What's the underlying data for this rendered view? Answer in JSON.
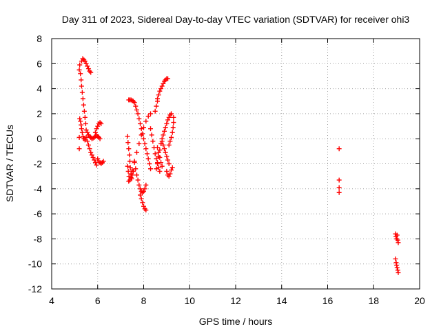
{
  "chart_data": {
    "type": "scatter",
    "title": "Day 311 of 2023, Sidereal Day-to-day VTEC variation (SDTVAR) for receiver ohi3",
    "xlabel": "GPS time / hours",
    "ylabel": "SDTVAR / TECUs",
    "xlim": [
      4,
      20
    ],
    "ylim": [
      -12,
      8
    ],
    "xticks": [
      4,
      6,
      8,
      10,
      12,
      14,
      16,
      18,
      20
    ],
    "yticks": [
      -12,
      -10,
      -8,
      -6,
      -4,
      -2,
      0,
      2,
      4,
      6,
      8
    ],
    "grid": true,
    "marker": "+",
    "color": "#ff0000",
    "series": [
      {
        "points": [
          [
            5.2,
            0.1
          ],
          [
            5.2,
            -0.8
          ],
          [
            5.2,
            5.5
          ],
          [
            5.22,
            5.9
          ],
          [
            5.25,
            5.2
          ],
          [
            5.28,
            4.7
          ],
          [
            5.3,
            4.2
          ],
          [
            5.33,
            3.7
          ],
          [
            5.36,
            3.2
          ],
          [
            5.39,
            2.7
          ],
          [
            5.42,
            2.2
          ],
          [
            5.45,
            1.7
          ],
          [
            5.48,
            1.2
          ],
          [
            5.5,
            0.7
          ],
          [
            5.3,
            6.2
          ],
          [
            5.35,
            6.4
          ],
          [
            5.4,
            6.3
          ],
          [
            5.45,
            6.2
          ],
          [
            5.5,
            6.0
          ],
          [
            5.55,
            5.8
          ],
          [
            5.6,
            5.6
          ],
          [
            5.65,
            5.4
          ],
          [
            5.7,
            5.3
          ],
          [
            5.22,
            1.6
          ],
          [
            5.25,
            1.4
          ],
          [
            5.28,
            1.1
          ],
          [
            5.3,
            0.8
          ],
          [
            5.33,
            0.5
          ],
          [
            5.36,
            0.2
          ],
          [
            5.4,
            0.0
          ],
          [
            5.45,
            -0.1
          ],
          [
            5.5,
            0.1
          ],
          [
            5.55,
            -0.2
          ],
          [
            5.6,
            -0.5
          ],
          [
            5.65,
            -0.8
          ],
          [
            5.7,
            -1.1
          ],
          [
            5.75,
            -1.3
          ],
          [
            5.8,
            -1.5
          ],
          [
            5.85,
            -1.7
          ],
          [
            5.9,
            -1.9
          ],
          [
            5.95,
            -2.1
          ],
          [
            5.55,
            0.5
          ],
          [
            5.6,
            0.3
          ],
          [
            5.65,
            0.2
          ],
          [
            5.7,
            0.1
          ],
          [
            5.75,
            0.0
          ],
          [
            5.8,
            0.05
          ],
          [
            5.85,
            0.1
          ],
          [
            5.9,
            0.2
          ],
          [
            5.95,
            0.3
          ],
          [
            6.0,
            0.2
          ],
          [
            6.05,
            0.1
          ],
          [
            6.1,
            0.0
          ],
          [
            5.9,
            0.5
          ],
          [
            5.95,
            0.8
          ],
          [
            6.0,
            1.0
          ],
          [
            6.05,
            1.2
          ],
          [
            6.1,
            1.3
          ],
          [
            6.15,
            1.2
          ],
          [
            6.0,
            -1.6
          ],
          [
            6.05,
            -1.8
          ],
          [
            6.1,
            -1.9
          ],
          [
            6.15,
            -2.0
          ],
          [
            6.2,
            -1.9
          ],
          [
            6.25,
            -1.8
          ],
          [
            7.3,
            0.2
          ],
          [
            7.32,
            -0.3
          ],
          [
            7.35,
            -0.8
          ],
          [
            7.38,
            -1.3
          ],
          [
            7.4,
            -1.8
          ],
          [
            7.42,
            -2.3
          ],
          [
            7.45,
            -2.8
          ],
          [
            7.48,
            -3.2
          ],
          [
            7.35,
            -3.4
          ],
          [
            7.3,
            -2.2
          ],
          [
            7.33,
            -2.6
          ],
          [
            7.36,
            -3.0
          ],
          [
            7.4,
            -3.3
          ],
          [
            7.45,
            -3.1
          ],
          [
            7.5,
            -2.9
          ],
          [
            7.55,
            -2.6
          ],
          [
            7.35,
            3.1
          ],
          [
            7.4,
            3.1
          ],
          [
            7.45,
            3.1
          ],
          [
            7.5,
            3.05
          ],
          [
            7.55,
            3.0
          ],
          [
            7.6,
            2.9
          ],
          [
            7.65,
            2.6
          ],
          [
            7.7,
            2.3
          ],
          [
            7.75,
            2.0
          ],
          [
            7.8,
            1.6
          ],
          [
            7.85,
            1.2
          ],
          [
            7.9,
            0.8
          ],
          [
            7.95,
            0.4
          ],
          [
            8.0,
            0.0
          ],
          [
            8.05,
            -0.4
          ],
          [
            8.1,
            -0.8
          ],
          [
            8.15,
            -1.2
          ],
          [
            8.2,
            -1.6
          ],
          [
            8.25,
            -2.0
          ],
          [
            8.3,
            -2.4
          ],
          [
            7.6,
            -1.9
          ],
          [
            7.65,
            -2.4
          ],
          [
            7.7,
            -2.9
          ],
          [
            7.75,
            -3.3
          ],
          [
            7.8,
            -3.7
          ],
          [
            7.85,
            -4.0
          ],
          [
            7.9,
            -4.2
          ],
          [
            7.95,
            -4.3
          ],
          [
            8.0,
            -4.2
          ],
          [
            8.05,
            -4.0
          ],
          [
            8.1,
            -3.7
          ],
          [
            7.85,
            -4.5
          ],
          [
            7.9,
            -4.8
          ],
          [
            7.95,
            -5.1
          ],
          [
            8.0,
            -5.4
          ],
          [
            8.05,
            -5.6
          ],
          [
            8.1,
            -5.7
          ],
          [
            7.5,
            -2.5
          ],
          [
            7.6,
            -1.8
          ],
          [
            7.7,
            -1.1
          ],
          [
            7.8,
            -0.4
          ],
          [
            7.9,
            0.3
          ],
          [
            8.0,
            0.9
          ],
          [
            8.1,
            1.4
          ],
          [
            8.2,
            1.8
          ],
          [
            8.3,
            2.0
          ],
          [
            8.6,
            3.2
          ],
          [
            8.65,
            3.5
          ],
          [
            8.7,
            3.8
          ],
          [
            8.75,
            4.0
          ],
          [
            8.8,
            4.2
          ],
          [
            8.85,
            4.4
          ],
          [
            8.9,
            4.6
          ],
          [
            8.95,
            4.7
          ],
          [
            9.0,
            4.8
          ],
          [
            9.05,
            4.8
          ],
          [
            8.5,
            2.2
          ],
          [
            8.55,
            2.6
          ],
          [
            8.6,
            3.0
          ],
          [
            8.3,
            0.8
          ],
          [
            8.35,
            0.3
          ],
          [
            8.4,
            -0.2
          ],
          [
            8.45,
            -0.7
          ],
          [
            8.5,
            -1.2
          ],
          [
            8.55,
            -1.6
          ],
          [
            8.6,
            -2.0
          ],
          [
            8.65,
            -2.3
          ],
          [
            8.7,
            -2.6
          ],
          [
            8.55,
            -2.4
          ],
          [
            8.6,
            -1.9
          ],
          [
            8.65,
            -1.4
          ],
          [
            8.7,
            -0.9
          ],
          [
            8.75,
            -0.4
          ],
          [
            8.8,
            0.0
          ],
          [
            8.85,
            0.3
          ],
          [
            8.9,
            0.6
          ],
          [
            8.95,
            0.9
          ],
          [
            9.0,
            1.2
          ],
          [
            9.05,
            1.5
          ],
          [
            9.1,
            1.7
          ],
          [
            9.15,
            1.9
          ],
          [
            9.2,
            2.0
          ],
          [
            8.6,
            -0.7
          ],
          [
            8.65,
            -1.1
          ],
          [
            8.7,
            -1.5
          ],
          [
            8.75,
            -1.9
          ],
          [
            8.8,
            -2.2
          ],
          [
            8.8,
            -0.2
          ],
          [
            8.85,
            -0.5
          ],
          [
            8.9,
            -0.8
          ],
          [
            8.95,
            -1.1
          ],
          [
            9.0,
            -1.4
          ],
          [
            9.05,
            -1.7
          ],
          [
            9.1,
            -2.0
          ],
          [
            9.0,
            -2.6
          ],
          [
            9.05,
            -2.9
          ],
          [
            9.1,
            -3.0
          ],
          [
            9.15,
            -2.8
          ],
          [
            9.2,
            -2.5
          ],
          [
            9.25,
            -2.3
          ],
          [
            9.1,
            -0.5
          ],
          [
            9.15,
            -0.2
          ],
          [
            9.2,
            0.1
          ],
          [
            9.25,
            0.5
          ],
          [
            9.28,
            0.9
          ],
          [
            9.3,
            1.3
          ],
          [
            9.3,
            1.7
          ],
          [
            16.5,
            -0.8
          ],
          [
            16.5,
            -3.3
          ],
          [
            16.5,
            -3.9
          ],
          [
            16.5,
            -4.3
          ],
          [
            18.95,
            -7.6
          ],
          [
            18.97,
            -7.8
          ],
          [
            19.0,
            -8.0
          ],
          [
            19.02,
            -7.7
          ],
          [
            19.05,
            -8.1
          ],
          [
            19.07,
            -8.3
          ],
          [
            18.95,
            -9.6
          ],
          [
            18.98,
            -9.9
          ],
          [
            19.0,
            -10.1
          ],
          [
            19.02,
            -10.3
          ],
          [
            19.05,
            -10.5
          ],
          [
            19.07,
            -10.7
          ]
        ]
      }
    ]
  }
}
